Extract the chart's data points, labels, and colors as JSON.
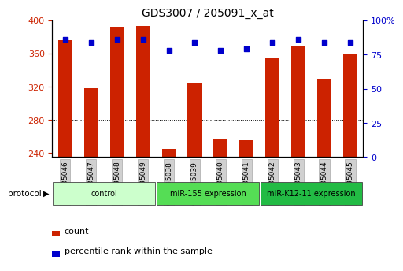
{
  "title": "GDS3007 / 205091_x_at",
  "samples": [
    "GSM235046",
    "GSM235047",
    "GSM235048",
    "GSM235049",
    "GSM235038",
    "GSM235039",
    "GSM235040",
    "GSM235041",
    "GSM235042",
    "GSM235043",
    "GSM235044",
    "GSM235045"
  ],
  "bar_values": [
    376,
    318,
    392,
    393,
    245,
    325,
    256,
    255,
    354,
    370,
    330,
    359
  ],
  "percentile_values": [
    86,
    84,
    86,
    86,
    78,
    84,
    78,
    79,
    84,
    86,
    84,
    84
  ],
  "bar_color": "#cc2200",
  "dot_color": "#0000cc",
  "ylim_left": [
    235,
    400
  ],
  "ylim_right": [
    0,
    100
  ],
  "yticks_left": [
    240,
    280,
    320,
    360,
    400
  ],
  "yticks_right": [
    0,
    25,
    50,
    75,
    100
  ],
  "groups": [
    {
      "label": "control",
      "start": 0,
      "end": 4,
      "color": "#ccffcc"
    },
    {
      "label": "miR-155 expression",
      "start": 4,
      "end": 8,
      "color": "#55dd55"
    },
    {
      "label": "miR-K12-11 expression",
      "start": 8,
      "end": 12,
      "color": "#22bb44"
    }
  ],
  "legend_count_color": "#cc2200",
  "legend_dot_color": "#0000cc",
  "protocol_label": "protocol",
  "bar_width": 0.55,
  "background_color": "#ffffff",
  "plot_bg_color": "#ffffff",
  "tick_label_color_left": "#cc2200",
  "tick_label_color_right": "#0000cc",
  "tick_box_color": "#d0d0d0",
  "grid_yticks": [
    280,
    320,
    360
  ]
}
